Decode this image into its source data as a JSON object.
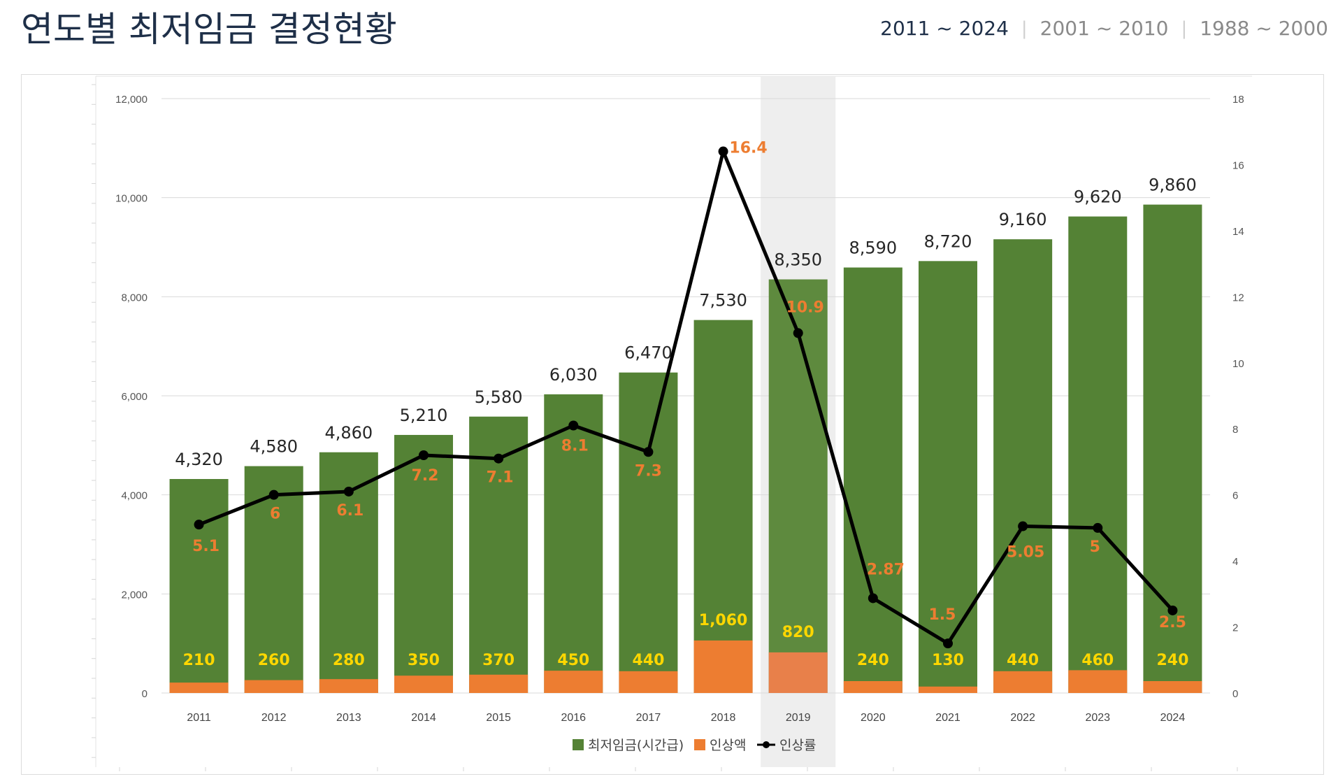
{
  "page": {
    "title": "연도별 최저임금 결정현황",
    "tabs": [
      {
        "label": "2011 ~ 2024",
        "active": true
      },
      {
        "label": "2001 ~ 2010",
        "active": false
      },
      {
        "label": "1988 ~ 2000",
        "active": false
      }
    ]
  },
  "chart_data": {
    "type": "bar",
    "stacked": true,
    "categories": [
      "2011",
      "2012",
      "2013",
      "2014",
      "2015",
      "2016",
      "2017",
      "2018",
      "2019",
      "2020",
      "2021",
      "2022",
      "2023",
      "2024"
    ],
    "series": [
      {
        "name": "최저임금(시간급)",
        "type": "bar",
        "color": "#548235",
        "values": [
          4320,
          4580,
          4860,
          5210,
          5580,
          6030,
          6470,
          7530,
          8350,
          8590,
          8720,
          9160,
          9620,
          9860
        ],
        "labels": [
          "4,320",
          "4,580",
          "4,860",
          "5,210",
          "5,580",
          "6,030",
          "6,470",
          "7,530",
          "8,350",
          "8,590",
          "8,720",
          "9,160",
          "9,620",
          "9,860"
        ]
      },
      {
        "name": "인상액",
        "type": "bar",
        "color": "#ed7d31",
        "values": [
          210,
          260,
          280,
          350,
          370,
          450,
          440,
          1060,
          820,
          240,
          130,
          440,
          460,
          240
        ],
        "labels": [
          "210",
          "260",
          "280",
          "350",
          "370",
          "450",
          "440",
          "1,060",
          "820",
          "240",
          "130",
          "440",
          "460",
          "240"
        ]
      },
      {
        "name": "인상률",
        "type": "line",
        "axis": "right",
        "color": "#000000",
        "values": [
          5.1,
          6,
          6.1,
          7.2,
          7.1,
          8.1,
          7.3,
          16.4,
          10.9,
          2.87,
          1.5,
          5.05,
          5,
          2.5
        ],
        "labels": [
          "5.1",
          "6",
          "6.1",
          "7.2",
          "7.1",
          "8.1",
          "7.3",
          "16.4",
          "10.9",
          "2.87",
          "1.5",
          "5.05",
          "5",
          "2.5"
        ]
      }
    ],
    "y_left": {
      "range": [
        0,
        12000
      ],
      "ticks": [
        "0",
        "2,000",
        "4,000",
        "6,000",
        "8,000",
        "10,000",
        "12,000"
      ]
    },
    "y_right": {
      "range": [
        0,
        18
      ],
      "ticks": [
        "0",
        "2",
        "4",
        "6",
        "8",
        "10",
        "12",
        "14",
        "16",
        "18"
      ]
    },
    "highlight_category": "2019",
    "legend_position": "bottom",
    "colors": {
      "label_dark": "#262626",
      "label_orange": "#ed7d31",
      "label_yellow": "#ffd700",
      "grid": "#d9d9d9",
      "highlight": "#eeeeee"
    }
  }
}
